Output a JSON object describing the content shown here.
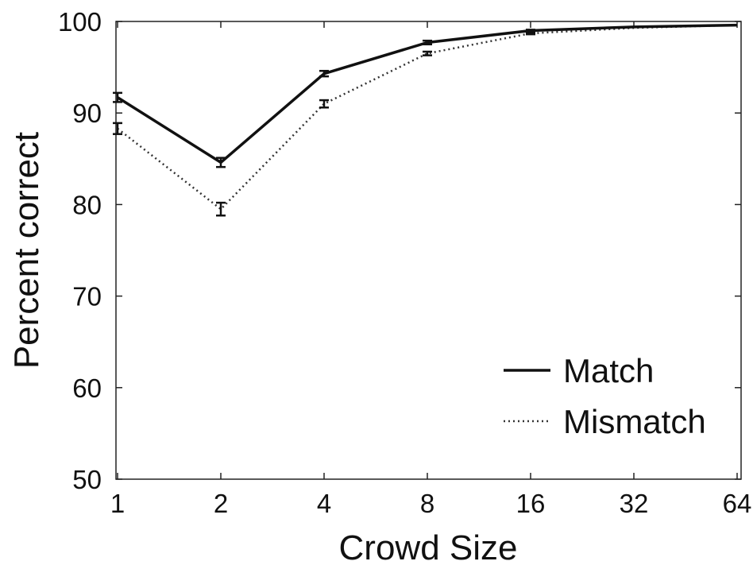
{
  "chart_data": {
    "type": "line",
    "title": "",
    "xlabel": "Crowd Size",
    "ylabel": "Percent correct",
    "x_scale": "log2",
    "categories": [
      "1",
      "2",
      "4",
      "8",
      "16",
      "32",
      "64"
    ],
    "x": [
      1,
      2,
      4,
      8,
      16,
      32,
      64
    ],
    "ylim": [
      50,
      100
    ],
    "yticks": [
      50,
      60,
      70,
      80,
      90,
      100
    ],
    "grid": false,
    "legend_position": "lower-right",
    "series": [
      {
        "name": "Match",
        "line_style": "solid",
        "color": "#111111",
        "values": [
          91.7,
          84.6,
          94.3,
          97.7,
          99.0,
          99.4,
          99.6
        ],
        "errors": [
          0.5,
          0.5,
          0.3,
          0.2,
          0.1,
          0.0,
          0.0
        ]
      },
      {
        "name": "Mismatch",
        "line_style": "dotted",
        "color": "#333333",
        "values": [
          88.3,
          79.5,
          91.0,
          96.5,
          98.7,
          99.3,
          99.6
        ],
        "errors": [
          0.6,
          0.7,
          0.4,
          0.2,
          0.1,
          0.0,
          0.0
        ]
      }
    ]
  }
}
